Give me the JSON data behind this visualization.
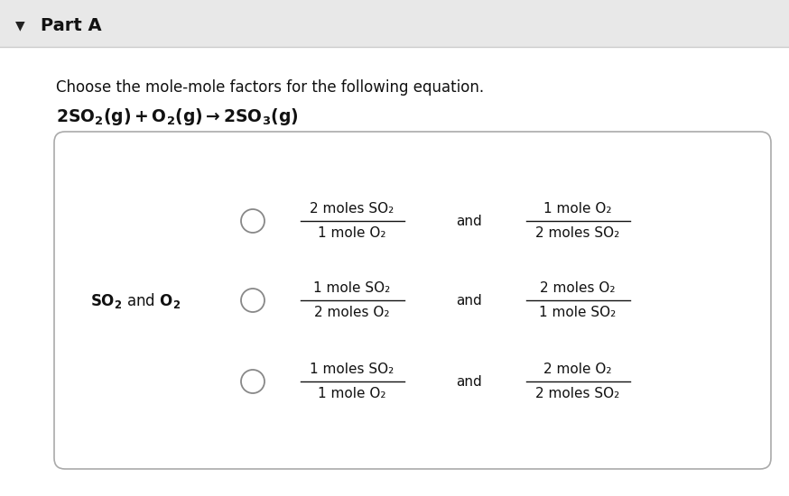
{
  "bg_color": "#ffffff",
  "header_bg": "#e8e8e8",
  "part_label": "Part A",
  "instruction": "Choose the mole-mole factors for the following equation.",
  "options": [
    {
      "num1": "2 moles SO₂",
      "den1": "1 mole O₂",
      "num2": "1 mole O₂",
      "den2": "2 moles SO₂"
    },
    {
      "num1": "1 mole SO₂",
      "den1": "2 moles O₂",
      "num2": "2 moles O₂",
      "den2": "1 mole SO₂"
    },
    {
      "num1": "1 moles SO₂",
      "den1": "1 mole O₂",
      "num2": "2 mole O₂",
      "den2": "2 moles SO₂"
    }
  ]
}
